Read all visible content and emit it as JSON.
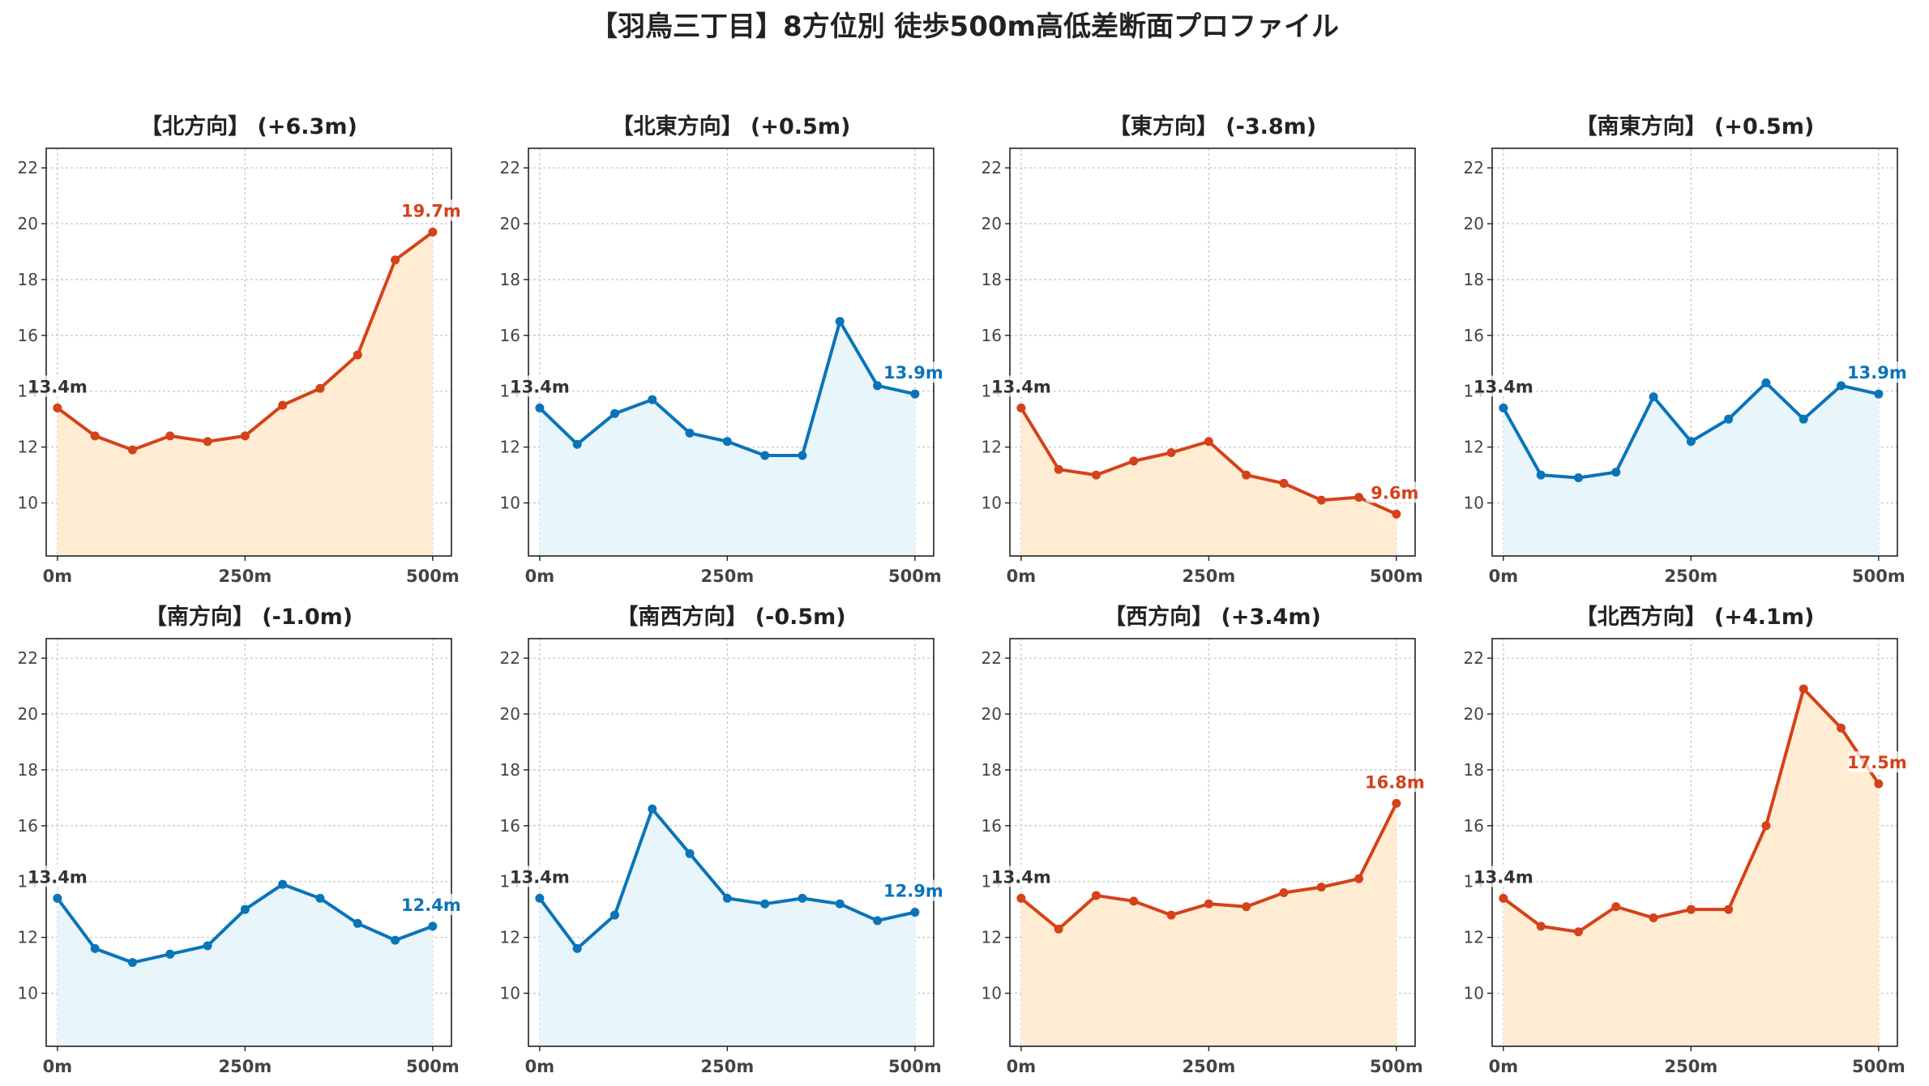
{
  "title": "【羽鳥三丁目】8方位別 徒歩500m高低差断面プロファイル",
  "colors": {
    "up_line": "#d4421a",
    "up_fill": "#ffecd2",
    "down_line": "#0a74b8",
    "down_fill": "#e8f5fb",
    "start_label": "#333333",
    "grid": "#c8c8c8",
    "axis": "#222222"
  },
  "chart_data": [
    {
      "type": "area",
      "title": "【北方向】 (+6.3m)",
      "trend": "up",
      "x": [
        0,
        50,
        100,
        150,
        200,
        250,
        300,
        350,
        400,
        450,
        500
      ],
      "values": [
        13.4,
        12.4,
        11.9,
        12.4,
        12.2,
        12.4,
        13.5,
        14.1,
        15.3,
        18.7,
        19.7
      ],
      "start_label": "13.4m",
      "end_label": "19.7m",
      "xticks": [
        "0m",
        "250m",
        "500m"
      ],
      "yticks": [
        10,
        12,
        14,
        16,
        18,
        20,
        22
      ],
      "ylim": [
        8.1,
        22.7
      ],
      "xlim": [
        -15,
        525
      ],
      "grid": true
    },
    {
      "type": "area",
      "title": "【北東方向】 (+0.5m)",
      "trend": "down",
      "x": [
        0,
        50,
        100,
        150,
        200,
        250,
        300,
        350,
        400,
        450,
        500
      ],
      "values": [
        13.4,
        12.1,
        13.2,
        13.7,
        12.5,
        12.2,
        11.7,
        11.7,
        16.5,
        14.2,
        13.9
      ],
      "start_label": "13.4m",
      "end_label": "13.9m",
      "xticks": [
        "0m",
        "250m",
        "500m"
      ],
      "yticks": [
        10,
        12,
        14,
        16,
        18,
        20,
        22
      ],
      "ylim": [
        8.1,
        22.7
      ],
      "xlim": [
        -15,
        525
      ],
      "grid": true
    },
    {
      "type": "area",
      "title": "【東方向】 (-3.8m)",
      "trend": "up",
      "x": [
        0,
        50,
        100,
        150,
        200,
        250,
        300,
        350,
        400,
        450,
        500
      ],
      "values": [
        13.4,
        11.2,
        11.0,
        11.5,
        11.8,
        12.2,
        11.0,
        10.7,
        10.1,
        10.2,
        9.6
      ],
      "start_label": "13.4m",
      "end_label": "9.6m",
      "xticks": [
        "0m",
        "250m",
        "500m"
      ],
      "yticks": [
        10,
        12,
        14,
        16,
        18,
        20,
        22
      ],
      "ylim": [
        8.1,
        22.7
      ],
      "xlim": [
        -15,
        525
      ],
      "grid": true
    },
    {
      "type": "area",
      "title": "【南東方向】 (+0.5m)",
      "trend": "down",
      "x": [
        0,
        50,
        100,
        150,
        200,
        250,
        300,
        350,
        400,
        450,
        500
      ],
      "values": [
        13.4,
        11.0,
        10.9,
        11.1,
        13.8,
        12.2,
        13.0,
        14.3,
        13.0,
        14.2,
        13.9
      ],
      "start_label": "13.4m",
      "end_label": "13.9m",
      "xticks": [
        "0m",
        "250m",
        "500m"
      ],
      "yticks": [
        10,
        12,
        14,
        16,
        18,
        20,
        22
      ],
      "ylim": [
        8.1,
        22.7
      ],
      "xlim": [
        -15,
        525
      ],
      "grid": true
    },
    {
      "type": "area",
      "title": "【南方向】 (-1.0m)",
      "trend": "down",
      "x": [
        0,
        50,
        100,
        150,
        200,
        250,
        300,
        350,
        400,
        450,
        500
      ],
      "values": [
        13.4,
        11.6,
        11.1,
        11.4,
        11.7,
        13.0,
        13.9,
        13.4,
        12.5,
        11.9,
        12.4
      ],
      "start_label": "13.4m",
      "end_label": "12.4m",
      "xticks": [
        "0m",
        "250m",
        "500m"
      ],
      "yticks": [
        10,
        12,
        14,
        16,
        18,
        20,
        22
      ],
      "ylim": [
        8.1,
        22.7
      ],
      "xlim": [
        -15,
        525
      ],
      "grid": true
    },
    {
      "type": "area",
      "title": "【南西方向】 (-0.5m)",
      "trend": "down",
      "x": [
        0,
        50,
        100,
        150,
        200,
        250,
        300,
        350,
        400,
        450,
        500
      ],
      "values": [
        13.4,
        11.6,
        12.8,
        16.6,
        15.0,
        13.4,
        13.2,
        13.4,
        13.2,
        12.6,
        12.9
      ],
      "start_label": "13.4m",
      "end_label": "12.9m",
      "xticks": [
        "0m",
        "250m",
        "500m"
      ],
      "yticks": [
        10,
        12,
        14,
        16,
        18,
        20,
        22
      ],
      "ylim": [
        8.1,
        22.7
      ],
      "xlim": [
        -15,
        525
      ],
      "grid": true
    },
    {
      "type": "area",
      "title": "【西方向】 (+3.4m)",
      "trend": "up",
      "x": [
        0,
        50,
        100,
        150,
        200,
        250,
        300,
        350,
        400,
        450,
        500
      ],
      "values": [
        13.4,
        12.3,
        13.5,
        13.3,
        12.8,
        13.2,
        13.1,
        13.6,
        13.8,
        14.1,
        16.8
      ],
      "start_label": "13.4m",
      "end_label": "16.8m",
      "xticks": [
        "0m",
        "250m",
        "500m"
      ],
      "yticks": [
        10,
        12,
        14,
        16,
        18,
        20,
        22
      ],
      "ylim": [
        8.1,
        22.7
      ],
      "xlim": [
        -15,
        525
      ],
      "grid": true
    },
    {
      "type": "area",
      "title": "【北西方向】 (+4.1m)",
      "trend": "up",
      "x": [
        0,
        50,
        100,
        150,
        200,
        250,
        300,
        350,
        400,
        450,
        500
      ],
      "values": [
        13.4,
        12.4,
        12.2,
        13.1,
        12.7,
        13.0,
        13.0,
        16.0,
        20.9,
        19.5,
        17.5
      ],
      "start_label": "13.4m",
      "end_label": "17.5m",
      "xticks": [
        "0m",
        "250m",
        "500m"
      ],
      "yticks": [
        10,
        12,
        14,
        16,
        18,
        20,
        22
      ],
      "ylim": [
        8.1,
        22.7
      ],
      "xlim": [
        -15,
        525
      ],
      "grid": true
    }
  ]
}
